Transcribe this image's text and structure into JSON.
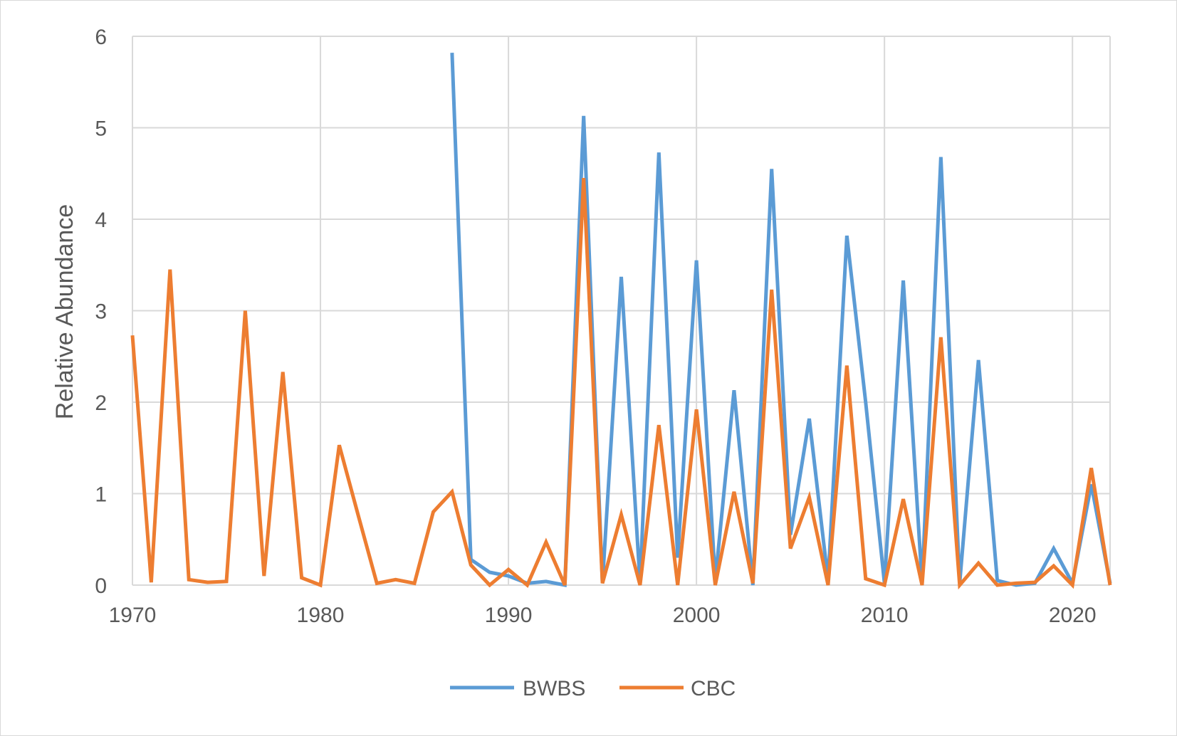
{
  "chart_data": {
    "type": "line",
    "ylabel": "Relative Abundance",
    "xlabel": "",
    "xlim": [
      1970,
      2022
    ],
    "ylim": [
      0,
      6
    ],
    "x_ticks": [
      "1970",
      "1980",
      "1990",
      "2000",
      "2010",
      "2020"
    ],
    "y_ticks": [
      "0",
      "1",
      "2",
      "3",
      "4",
      "5",
      "6"
    ],
    "grid": true,
    "legend_position": "bottom",
    "series": [
      {
        "name": "BWBS",
        "color": "#5B9BD5",
        "points": [
          [
            1987,
            5.82
          ],
          [
            1988,
            0.28
          ],
          [
            1989,
            0.14
          ],
          [
            1990,
            0.1
          ],
          [
            1991,
            0.02
          ],
          [
            1992,
            0.04
          ],
          [
            1993,
            0.0
          ],
          [
            1994,
            5.13
          ],
          [
            1995,
            0.02
          ],
          [
            1996,
            3.37
          ],
          [
            1997,
            0.02
          ],
          [
            1998,
            4.73
          ],
          [
            1999,
            0.3
          ],
          [
            2000,
            3.55
          ],
          [
            2001,
            0.05
          ],
          [
            2002,
            2.13
          ],
          [
            2003,
            0.0
          ],
          [
            2004,
            4.55
          ],
          [
            2005,
            0.55
          ],
          [
            2006,
            1.82
          ],
          [
            2007,
            0.05
          ],
          [
            2008,
            3.82
          ],
          [
            2009,
            2.0
          ],
          [
            2010,
            0.02
          ],
          [
            2011,
            3.33
          ],
          [
            2012,
            0.02
          ],
          [
            2013,
            4.68
          ],
          [
            2014,
            0.02
          ],
          [
            2015,
            2.46
          ],
          [
            2016,
            0.05
          ],
          [
            2017,
            0.0
          ],
          [
            2018,
            0.02
          ],
          [
            2019,
            0.4
          ],
          [
            2020,
            0.02
          ],
          [
            2021,
            1.1
          ],
          [
            2022,
            0.02
          ]
        ]
      },
      {
        "name": "CBC",
        "color": "#ED7D31",
        "points": [
          [
            1970,
            2.73
          ],
          [
            1971,
            0.03
          ],
          [
            1972,
            3.45
          ],
          [
            1973,
            0.06
          ],
          [
            1974,
            0.03
          ],
          [
            1975,
            0.04
          ],
          [
            1976,
            3.0
          ],
          [
            1977,
            0.1
          ],
          [
            1978,
            2.33
          ],
          [
            1979,
            0.08
          ],
          [
            1980,
            0.0
          ],
          [
            1981,
            1.53
          ],
          [
            1982,
            0.77
          ],
          [
            1983,
            0.02
          ],
          [
            1984,
            0.06
          ],
          [
            1985,
            0.02
          ],
          [
            1986,
            0.8
          ],
          [
            1987,
            1.02
          ],
          [
            1988,
            0.22
          ],
          [
            1989,
            0.0
          ],
          [
            1990,
            0.17
          ],
          [
            1991,
            0.0
          ],
          [
            1992,
            0.47
          ],
          [
            1993,
            0.0
          ],
          [
            1994,
            4.45
          ],
          [
            1995,
            0.02
          ],
          [
            1996,
            0.77
          ],
          [
            1997,
            0.0
          ],
          [
            1998,
            1.75
          ],
          [
            1999,
            0.0
          ],
          [
            2000,
            1.92
          ],
          [
            2001,
            0.0
          ],
          [
            2002,
            1.02
          ],
          [
            2003,
            0.02
          ],
          [
            2004,
            3.23
          ],
          [
            2005,
            0.4
          ],
          [
            2006,
            0.96
          ],
          [
            2007,
            0.0
          ],
          [
            2008,
            2.4
          ],
          [
            2009,
            0.07
          ],
          [
            2010,
            0.0
          ],
          [
            2011,
            0.94
          ],
          [
            2012,
            0.0
          ],
          [
            2013,
            2.71
          ],
          [
            2014,
            0.0
          ],
          [
            2015,
            0.24
          ],
          [
            2016,
            0.0
          ],
          [
            2017,
            0.02
          ],
          [
            2018,
            0.03
          ],
          [
            2019,
            0.21
          ],
          [
            2020,
            0.0
          ],
          [
            2021,
            1.28
          ],
          [
            2022,
            0.0
          ]
        ]
      }
    ]
  }
}
